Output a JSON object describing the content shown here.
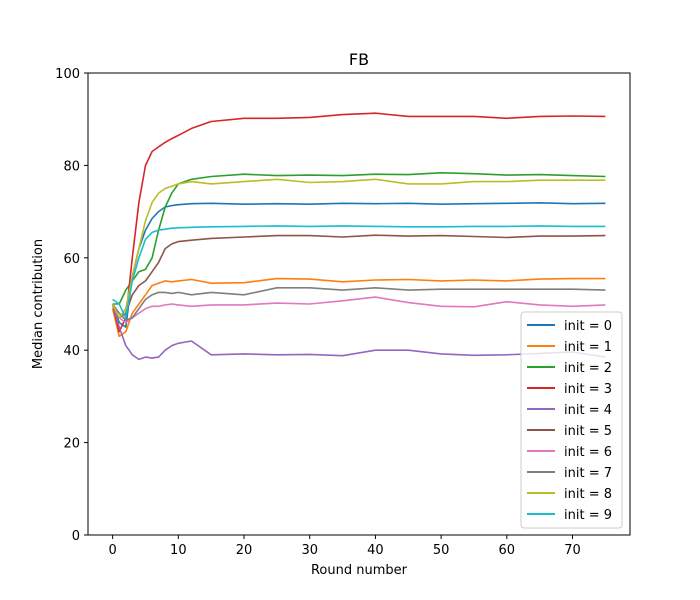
{
  "chart_data": {
    "type": "line",
    "title": "FB",
    "xlabel": "Round number",
    "ylabel": "Median contribution",
    "xlim": [
      -3.75,
      78.75
    ],
    "ylim": [
      0,
      100
    ],
    "xticks": [
      0,
      10,
      20,
      30,
      40,
      50,
      60,
      70
    ],
    "yticks": [
      0,
      20,
      40,
      60,
      80,
      100
    ],
    "legend_position": "lower right",
    "grid": false,
    "x": [
      0,
      1,
      2,
      3,
      4,
      5,
      6,
      7,
      8,
      9,
      10,
      12,
      15,
      20,
      25,
      30,
      35,
      40,
      45,
      50,
      55,
      60,
      65,
      70,
      75
    ],
    "series": [
      {
        "name": "init = 0",
        "color": "#1f77b4",
        "values": [
          50,
          46,
          45,
          56,
          62,
          66,
          68.5,
          70,
          71,
          71.3,
          71.5,
          71.7,
          71.8,
          71.6,
          71.7,
          71.6,
          71.8,
          71.7,
          71.8,
          71.6,
          71.7,
          71.8,
          71.9,
          71.7,
          71.8
        ]
      },
      {
        "name": "init = 1",
        "color": "#ff7f0e",
        "values": [
          49,
          43,
          44,
          48,
          50,
          52,
          54,
          54.5,
          55,
          54.8,
          55,
          55.3,
          54.5,
          54.6,
          55.5,
          55.4,
          54.8,
          55.2,
          55.3,
          55,
          55.2,
          55,
          55.4,
          55.5,
          55.5
        ]
      },
      {
        "name": "init = 2",
        "color": "#2ca02c",
        "values": [
          50,
          50,
          53,
          55,
          57,
          57.5,
          60,
          66,
          71,
          74,
          76,
          77,
          77.6,
          78.1,
          77.8,
          77.9,
          77.8,
          78.1,
          78,
          78.4,
          78.2,
          77.9,
          78,
          77.8,
          77.6
        ]
      },
      {
        "name": "init = 3",
        "color": "#d62728",
        "values": [
          50,
          44,
          47,
          60,
          72,
          80,
          83,
          84,
          85,
          85.8,
          86.5,
          88,
          89.5,
          90.2,
          90.2,
          90.4,
          91,
          91.3,
          90.6,
          90.6,
          90.6,
          90.2,
          90.6,
          90.7,
          90.6
        ]
      },
      {
        "name": "init = 4",
        "color": "#9467bd",
        "values": [
          50,
          45,
          41,
          39,
          38,
          38.5,
          38.3,
          38.5,
          40,
          41,
          41.5,
          42,
          39,
          39.2,
          39,
          39.1,
          38.8,
          40,
          40,
          39.2,
          38.9,
          39,
          39.3,
          39.6,
          38.5
        ]
      },
      {
        "name": "init = 5",
        "color": "#8c564b",
        "values": [
          50,
          47,
          48,
          52,
          54,
          55,
          57,
          59,
          62,
          63,
          63.5,
          63.8,
          64.2,
          64.5,
          64.8,
          64.8,
          64.5,
          64.9,
          64.7,
          64.8,
          64.6,
          64.4,
          64.7,
          64.7,
          64.8
        ]
      },
      {
        "name": "init = 6",
        "color": "#e377c2",
        "values": [
          50,
          47,
          46,
          47,
          48,
          49,
          49.5,
          49.5,
          49.8,
          50,
          49.8,
          49.5,
          49.8,
          49.8,
          50.2,
          50,
          50.7,
          51.5,
          50.3,
          49.5,
          49.4,
          50.5,
          49.8,
          49.5,
          49.8
        ]
      },
      {
        "name": "init = 7",
        "color": "#7f7f7f",
        "values": [
          50,
          48,
          46.5,
          47,
          49,
          51,
          52,
          52.5,
          52.5,
          52.3,
          52.5,
          52,
          52.5,
          52,
          53.5,
          53.5,
          53,
          53.5,
          53,
          53.2,
          53.2,
          53.2,
          53.2,
          53.2,
          53
        ]
      },
      {
        "name": "init = 8",
        "color": "#bcbd22",
        "values": [
          50,
          47,
          49,
          56,
          62,
          68,
          72,
          74,
          75,
          75.5,
          76,
          76.5,
          76,
          76.5,
          77,
          76.3,
          76.5,
          77,
          76,
          76,
          76.5,
          76.5,
          76.8,
          76.8,
          76.8
        ]
      },
      {
        "name": "init = 9",
        "color": "#17becf",
        "values": [
          51,
          50,
          47,
          55,
          60,
          64,
          65.5,
          66,
          66.2,
          66.4,
          66.5,
          66.6,
          66.7,
          66.8,
          66.9,
          66.8,
          66.9,
          66.8,
          66.7,
          66.7,
          66.8,
          66.8,
          66.9,
          66.8,
          66.8
        ]
      }
    ]
  }
}
